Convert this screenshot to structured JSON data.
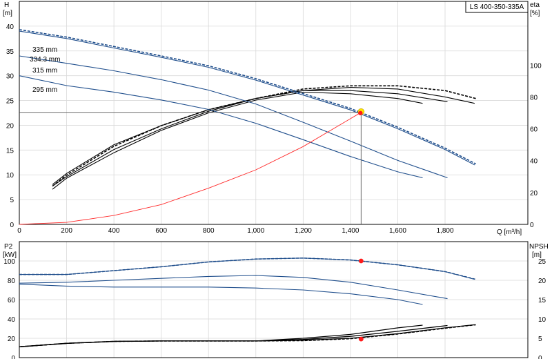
{
  "chart_data": {
    "type": "line",
    "model_label": "LS 400-350-335A",
    "x_label": "Q [m³/h]",
    "x_ticks": [
      "0",
      "200",
      "400",
      "600",
      "800",
      "1,000",
      "1,200",
      "1,400",
      "1,600",
      "1,800"
    ],
    "xlim": [
      0,
      2150
    ],
    "duty_point": {
      "q": 1445,
      "h": 22.6
    },
    "grid": true,
    "upper": {
      "left_axis": {
        "label": "H",
        "unit": "[m]",
        "ylim": [
          0,
          45
        ],
        "ticks": [
          "0",
          "5",
          "10",
          "15",
          "20",
          "25",
          "30",
          "35",
          "40"
        ]
      },
      "right_axis": {
        "label": "eta",
        "unit": "[%]",
        "ylim": [
          0,
          140
        ],
        "ticks": [
          "0",
          "20",
          "40",
          "60",
          "80",
          "100"
        ]
      },
      "head_curves": [
        {
          "name": "335 mm",
          "dashed": true,
          "color": "#1f4e8c",
          "points": [
            [
              0,
              39.3
            ],
            [
              200,
              37.8
            ],
            [
              400,
              35.9
            ],
            [
              600,
              34.0
            ],
            [
              800,
              32.0
            ],
            [
              1000,
              29.4
            ],
            [
              1200,
              26.4
            ],
            [
              1400,
              23.4
            ],
            [
              1600,
              19.6
            ],
            [
              1800,
              15.4
            ],
            [
              1930,
              12.2
            ]
          ]
        },
        {
          "name": "334.3 mm",
          "dashed": false,
          "color": "#1f4e8c",
          "points": [
            [
              0,
              39.0
            ],
            [
              200,
              37.5
            ],
            [
              400,
              35.6
            ],
            [
              600,
              33.7
            ],
            [
              800,
              31.7
            ],
            [
              1000,
              29.1
            ],
            [
              1200,
              26.1
            ],
            [
              1400,
              23.1
            ],
            [
              1600,
              19.3
            ],
            [
              1800,
              15.1
            ],
            [
              1925,
              12.0
            ]
          ]
        },
        {
          "name": "315 mm",
          "dashed": false,
          "color": "#1f4e8c",
          "points": [
            [
              0,
              34.0
            ],
            [
              200,
              32.5
            ],
            [
              400,
              31.0
            ],
            [
              600,
              29.2
            ],
            [
              800,
              27.1
            ],
            [
              1000,
              24.3
            ],
            [
              1200,
              20.6
            ],
            [
              1400,
              16.8
            ],
            [
              1600,
              12.9
            ],
            [
              1810,
              9.4
            ]
          ]
        },
        {
          "name": "295 mm",
          "dashed": false,
          "color": "#1f4e8c",
          "points": [
            [
              0,
              30.0
            ],
            [
              200,
              28.0
            ],
            [
              400,
              26.7
            ],
            [
              600,
              25.1
            ],
            [
              800,
              23.2
            ],
            [
              1000,
              20.4
            ],
            [
              1200,
              17.1
            ],
            [
              1400,
              13.7
            ],
            [
              1600,
              10.6
            ],
            [
              1705,
              9.4
            ]
          ]
        }
      ],
      "system_curve": {
        "color": "#ff2a2a",
        "points": [
          [
            0,
            0
          ],
          [
            200,
            0.4
          ],
          [
            400,
            1.8
          ],
          [
            600,
            4.0
          ],
          [
            800,
            7.3
          ],
          [
            1000,
            11.0
          ],
          [
            1200,
            15.7
          ],
          [
            1445,
            22.6
          ]
        ]
      },
      "efficiency_curves": [
        {
          "dashed": true,
          "color": "#000000",
          "points": [
            [
              140,
              24
            ],
            [
              200,
              31
            ],
            [
              400,
              49
            ],
            [
              600,
              62
            ],
            [
              800,
              72
            ],
            [
              1000,
              79
            ],
            [
              1200,
              85
            ],
            [
              1400,
              87
            ],
            [
              1600,
              87
            ],
            [
              1800,
              84
            ],
            [
              1930,
              79
            ]
          ]
        },
        {
          "dashed": false,
          "color": "#000000",
          "points": [
            [
              140,
              25
            ],
            [
              200,
              32
            ],
            [
              400,
              50
            ],
            [
              600,
              62
            ],
            [
              800,
              72
            ],
            [
              1000,
              79
            ],
            [
              1200,
              84
            ],
            [
              1400,
              86
            ],
            [
              1600,
              85
            ],
            [
              1800,
              80
            ],
            [
              1925,
              76
            ]
          ]
        },
        {
          "dashed": false,
          "color": "#000000",
          "points": [
            [
              140,
              24
            ],
            [
              200,
              30
            ],
            [
              400,
              47
            ],
            [
              600,
              60
            ],
            [
              800,
              71
            ],
            [
              1000,
              79
            ],
            [
              1200,
              84
            ],
            [
              1400,
              84
            ],
            [
              1600,
              82
            ],
            [
              1810,
              77
            ]
          ]
        },
        {
          "dashed": false,
          "color": "#000000",
          "points": [
            [
              140,
              22
            ],
            [
              200,
              29
            ],
            [
              400,
              45
            ],
            [
              600,
              59
            ],
            [
              800,
              70
            ],
            [
              1000,
              78
            ],
            [
              1200,
              83
            ],
            [
              1400,
              82
            ],
            [
              1600,
              79
            ],
            [
              1705,
              76
            ]
          ]
        }
      ]
    },
    "lower": {
      "left_axis": {
        "label": "P2",
        "unit": "[kW]",
        "ylim": [
          0,
          120
        ],
        "ticks": [
          "0",
          "20",
          "40",
          "60",
          "80",
          "100"
        ]
      },
      "right_axis": {
        "label": "NPSH",
        "unit": "[m]",
        "ylim": [
          0,
          30
        ],
        "ticks": [
          "0",
          "5",
          "10",
          "15",
          "20",
          "25"
        ]
      },
      "power_curves": [
        {
          "dashed": true,
          "color": "#1f4e8c",
          "points": [
            [
              0,
              86
            ],
            [
              200,
              86
            ],
            [
              400,
              90
            ],
            [
              600,
              94
            ],
            [
              800,
              99
            ],
            [
              1000,
              102
            ],
            [
              1200,
              103
            ],
            [
              1400,
              101
            ],
            [
              1600,
              96
            ],
            [
              1800,
              89
            ],
            [
              1930,
              81
            ]
          ]
        },
        {
          "dashed": false,
          "color": "#1f4e8c",
          "points": [
            [
              0,
              86
            ],
            [
              200,
              86
            ],
            [
              400,
              90
            ],
            [
              600,
              94
            ],
            [
              800,
              99
            ],
            [
              1000,
              102
            ],
            [
              1200,
              103
            ],
            [
              1400,
              101
            ],
            [
              1600,
              96
            ],
            [
              1800,
              89
            ],
            [
              1925,
              81
            ]
          ]
        },
        {
          "dashed": false,
          "color": "#1f4e8c",
          "points": [
            [
              0,
              77
            ],
            [
              200,
              78
            ],
            [
              400,
              80
            ],
            [
              600,
              82
            ],
            [
              800,
              84
            ],
            [
              1000,
              85
            ],
            [
              1200,
              83
            ],
            [
              1400,
              78
            ],
            [
              1600,
              70
            ],
            [
              1810,
              61
            ]
          ]
        },
        {
          "dashed": false,
          "color": "#1f4e8c",
          "points": [
            [
              0,
              76
            ],
            [
              200,
              74
            ],
            [
              400,
              73
            ],
            [
              600,
              73
            ],
            [
              800,
              73
            ],
            [
              1000,
              72
            ],
            [
              1200,
              70
            ],
            [
              1400,
              66
            ],
            [
              1600,
              60
            ],
            [
              1705,
              55
            ]
          ]
        }
      ],
      "npsh_curves": [
        {
          "dashed": true,
          "color": "#000000",
          "points": [
            [
              0,
              2.8
            ],
            [
              200,
              3.7
            ],
            [
              400,
              4.2
            ],
            [
              600,
              4.3
            ],
            [
              800,
              4.3
            ],
            [
              1000,
              4.3
            ],
            [
              1200,
              4.4
            ],
            [
              1400,
              4.9
            ],
            [
              1600,
              6.1
            ],
            [
              1800,
              7.6
            ],
            [
              1930,
              8.5
            ]
          ]
        },
        {
          "dashed": false,
          "color": "#000000",
          "points": [
            [
              0,
              2.8
            ],
            [
              200,
              3.7
            ],
            [
              400,
              4.2
            ],
            [
              600,
              4.3
            ],
            [
              800,
              4.3
            ],
            [
              1000,
              4.3
            ],
            [
              1200,
              4.5
            ],
            [
              1400,
              5.0
            ],
            [
              1600,
              6.2
            ],
            [
              1800,
              7.7
            ],
            [
              1925,
              8.5
            ]
          ]
        },
        {
          "dashed": false,
          "color": "#000000",
          "points": [
            [
              0,
              2.8
            ],
            [
              200,
              3.7
            ],
            [
              400,
              4.2
            ],
            [
              600,
              4.3
            ],
            [
              800,
              4.3
            ],
            [
              1000,
              4.3
            ],
            [
              1200,
              4.7
            ],
            [
              1400,
              5.5
            ],
            [
              1600,
              6.8
            ],
            [
              1810,
              8.3
            ]
          ]
        },
        {
          "dashed": false,
          "color": "#000000",
          "points": [
            [
              0,
              2.8
            ],
            [
              200,
              3.7
            ],
            [
              400,
              4.2
            ],
            [
              600,
              4.3
            ],
            [
              800,
              4.3
            ],
            [
              1000,
              4.3
            ],
            [
              1200,
              5.0
            ],
            [
              1400,
              6.0
            ],
            [
              1600,
              7.7
            ],
            [
              1705,
              8.4
            ]
          ]
        }
      ],
      "duty_power": 100,
      "duty_npsh": 4.8
    }
  }
}
